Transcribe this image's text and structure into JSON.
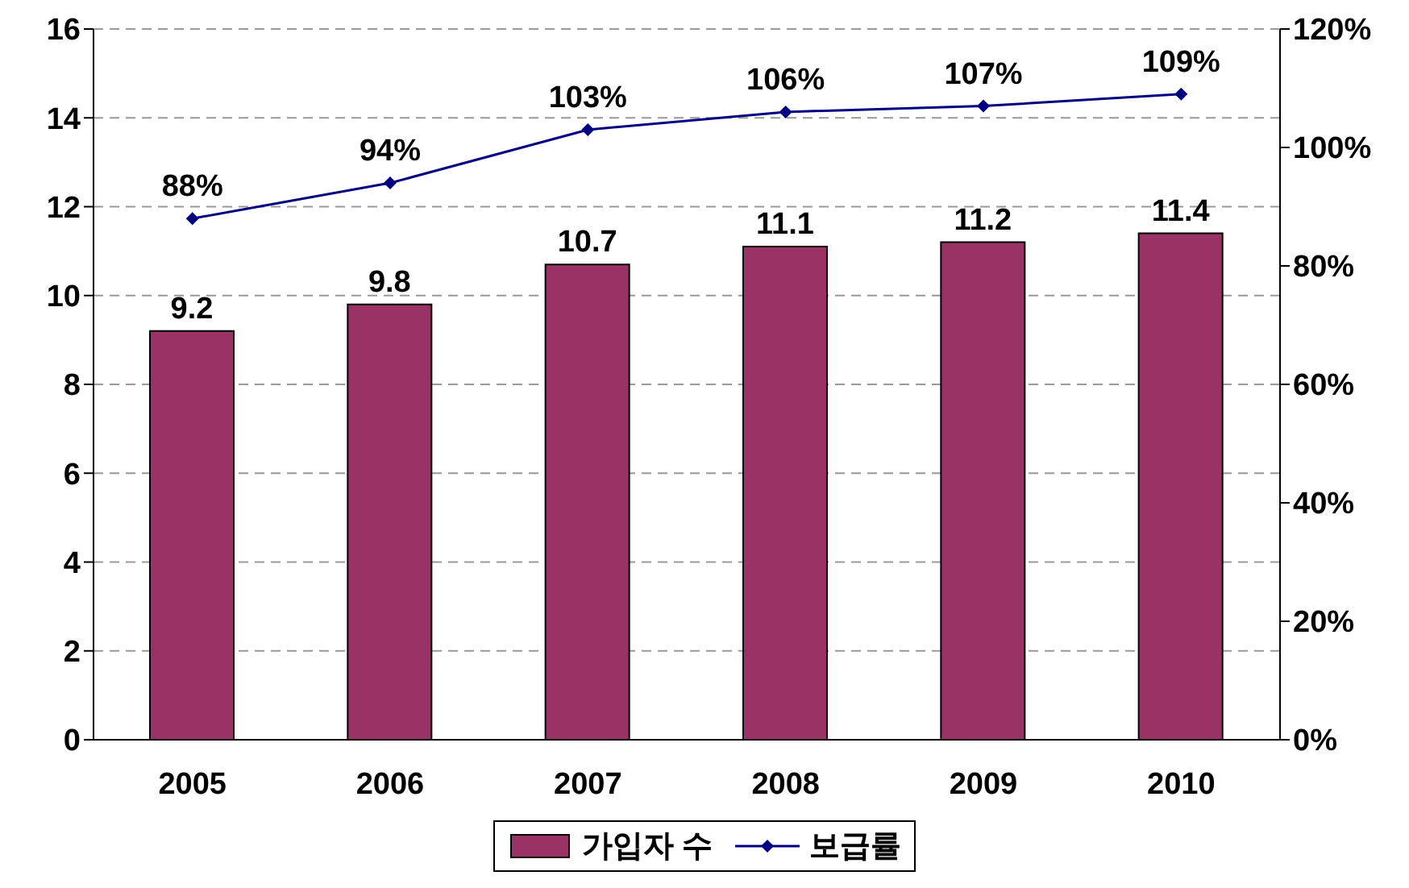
{
  "chart_data": {
    "type": "bar",
    "categories": [
      "2005",
      "2006",
      "2007",
      "2008",
      "2009",
      "2010"
    ],
    "series": [
      {
        "name": "가입자 수",
        "color": "#993366",
        "values": [
          9.2,
          9.8,
          10.7,
          11.1,
          11.2,
          11.4
        ],
        "value_labels": [
          "9.2",
          "9.8",
          "10.7",
          "11.1",
          "11.2",
          "11.4"
        ]
      },
      {
        "name": "보급률",
        "type": "line",
        "color": "#000080",
        "axis": "y2",
        "values": [
          88,
          94,
          103,
          106,
          107,
          109
        ],
        "value_labels": [
          "88%",
          "94%",
          "103%",
          "106%",
          "107%",
          "109%"
        ]
      }
    ],
    "ylim": [
      0,
      16
    ],
    "yticks": [
      0,
      2,
      4,
      6,
      8,
      10,
      12,
      14,
      16
    ],
    "y2lim": [
      0,
      120
    ],
    "y2ticks": [
      {
        "value": 0,
        "label": "0%"
      },
      {
        "value": 20,
        "label": "20%"
      },
      {
        "value": 40,
        "label": "40%"
      },
      {
        "value": 60,
        "label": "60%"
      },
      {
        "value": 80,
        "label": "80%"
      },
      {
        "value": 100,
        "label": "100%"
      },
      {
        "value": 120,
        "label": "120%"
      }
    ],
    "grid": "y",
    "legend": "bottom",
    "marker": "diamond"
  }
}
